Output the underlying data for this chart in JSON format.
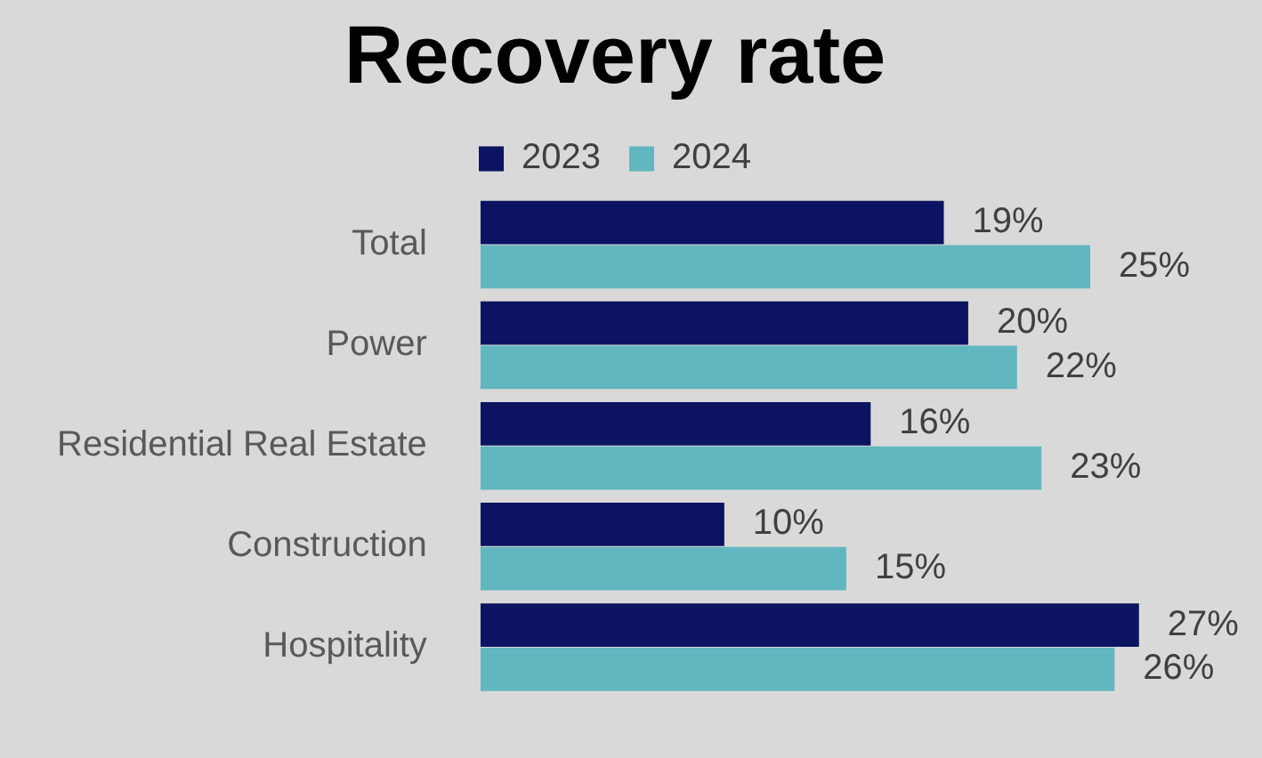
{
  "chart_data": {
    "type": "bar",
    "orientation": "horizontal",
    "title": "Recovery rate",
    "categories": [
      "Total",
      "Power",
      "Residential Real Estate",
      "Construction",
      "Hospitality"
    ],
    "series": [
      {
        "name": "2023",
        "color": "#0c1461",
        "values": [
          19,
          20,
          16,
          10,
          27
        ],
        "value_labels": [
          "19%",
          "20%",
          "16%",
          "10%",
          "27%"
        ]
      },
      {
        "name": "2024",
        "color": "#62b6bf",
        "values": [
          25,
          22,
          23,
          15,
          26
        ],
        "value_labels": [
          "25%",
          "22%",
          "23%",
          "15%",
          "26%"
        ]
      }
    ],
    "legend": "top"
  }
}
